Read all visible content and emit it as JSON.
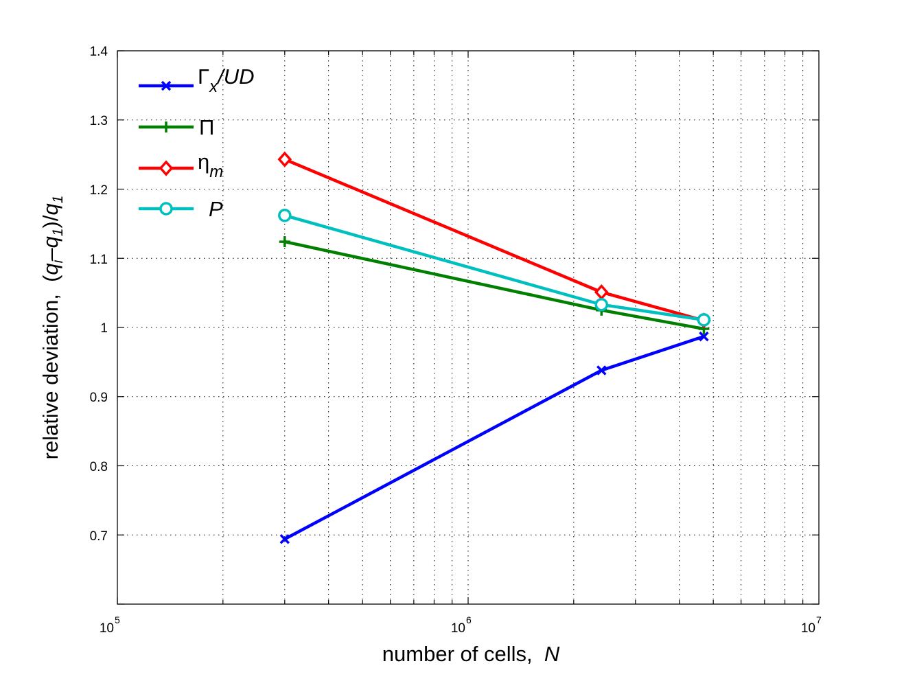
{
  "chart_data": {
    "type": "line",
    "xscale": "log",
    "xlim": [
      100000,
      10000000
    ],
    "ylim": [
      0.6,
      1.4
    ],
    "grid": true,
    "legend_position": "top-left",
    "x_tick_labels": [
      {
        "base": "10",
        "exp": "5"
      },
      {
        "base": "10",
        "exp": "6"
      },
      {
        "base": "10",
        "exp": "7"
      }
    ],
    "y_tick_labels": [
      "0.7",
      "0.8",
      "0.9",
      "1",
      "1.1",
      "1.2",
      "1.3",
      "1.4"
    ],
    "xlabel": "number of cells,  N",
    "ylabel": "relative deviation,  (q_i-q_1)/q_1",
    "x": [
      300000,
      2400000,
      4700000
    ],
    "series": [
      {
        "name": "Γx/UD",
        "color": "#0000ff",
        "marker": "x",
        "values": [
          0.694,
          0.938,
          0.987
        ]
      },
      {
        "name": "Π",
        "color": "#007f00",
        "marker": "+",
        "values": [
          1.124,
          1.025,
          0.998
        ]
      },
      {
        "name": "ηm",
        "color": "#ff0000",
        "marker": "diamond",
        "values": [
          1.243,
          1.051,
          1.01
        ]
      },
      {
        "name": "P",
        "color": "#00bfbf",
        "marker": "circle",
        "values": [
          1.162,
          1.033,
          1.011
        ]
      }
    ]
  }
}
